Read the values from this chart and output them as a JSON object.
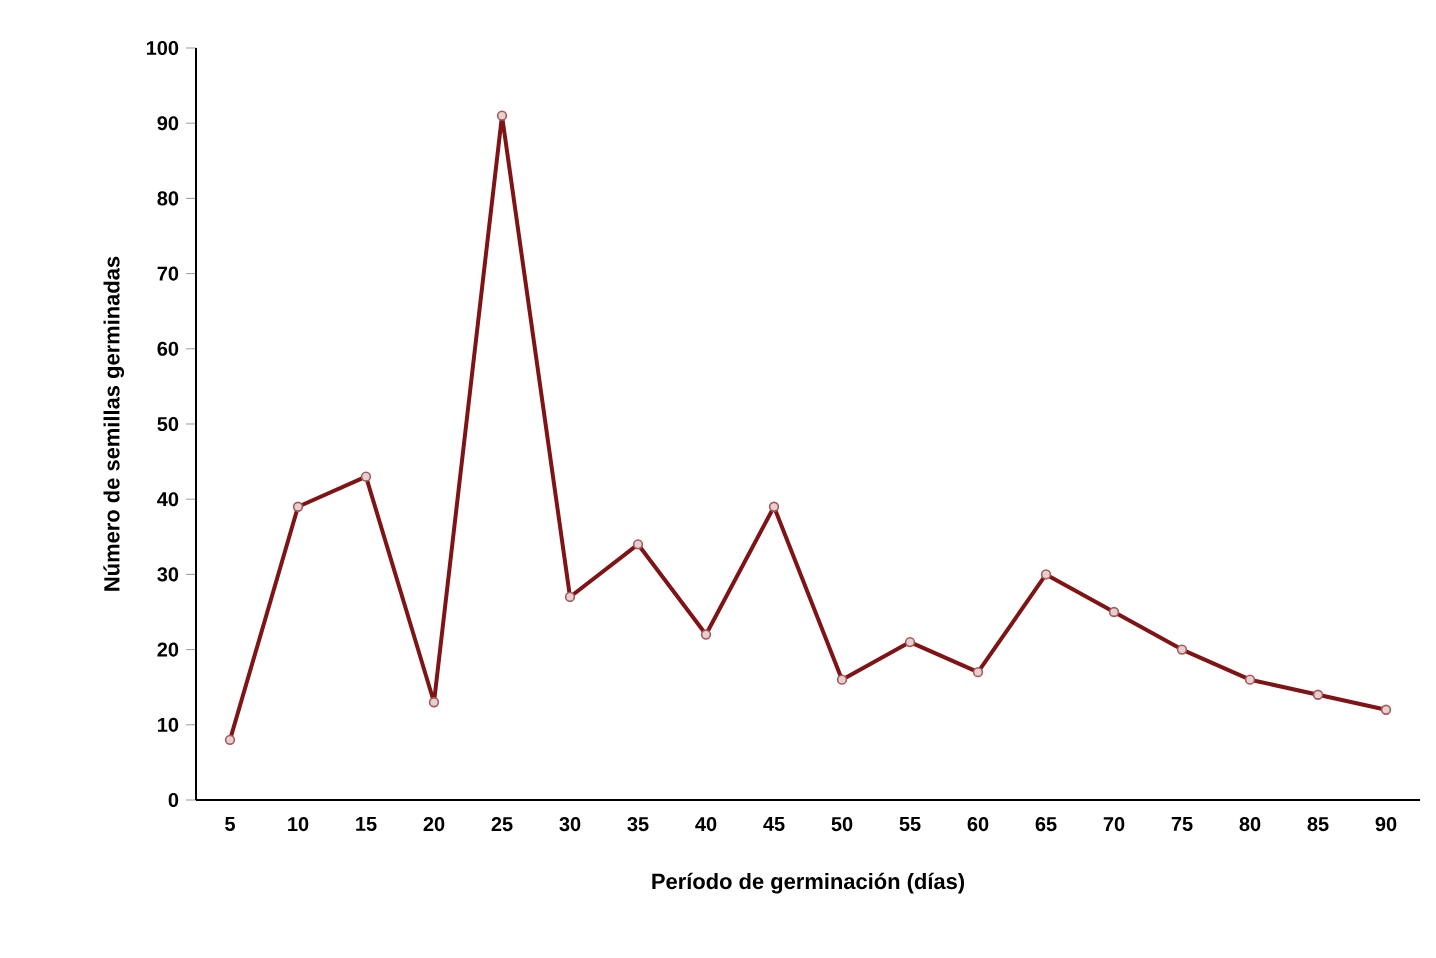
{
  "chart_data": {
    "type": "line",
    "xlabel": "Período de germinación (días)",
    "ylabel": "Número de semillas germinadas",
    "categories": [
      "5",
      "10",
      "15",
      "20",
      "25",
      "30",
      "35",
      "40",
      "45",
      "50",
      "55",
      "60",
      "65",
      "70",
      "75",
      "80",
      "85",
      "90"
    ],
    "series": [
      {
        "color": "#7f1416",
        "values": [
          8,
          39,
          43,
          13,
          91,
          27,
          34,
          22,
          39,
          16,
          21,
          17,
          30,
          25,
          20,
          16,
          14,
          12
        ]
      }
    ],
    "ylim": [
      0,
      100
    ],
    "yticks": [
      0,
      10,
      20,
      30,
      40,
      50,
      60,
      70,
      80,
      90,
      100
    ],
    "grid": false,
    "marker": "circle",
    "line_style": "solid"
  }
}
